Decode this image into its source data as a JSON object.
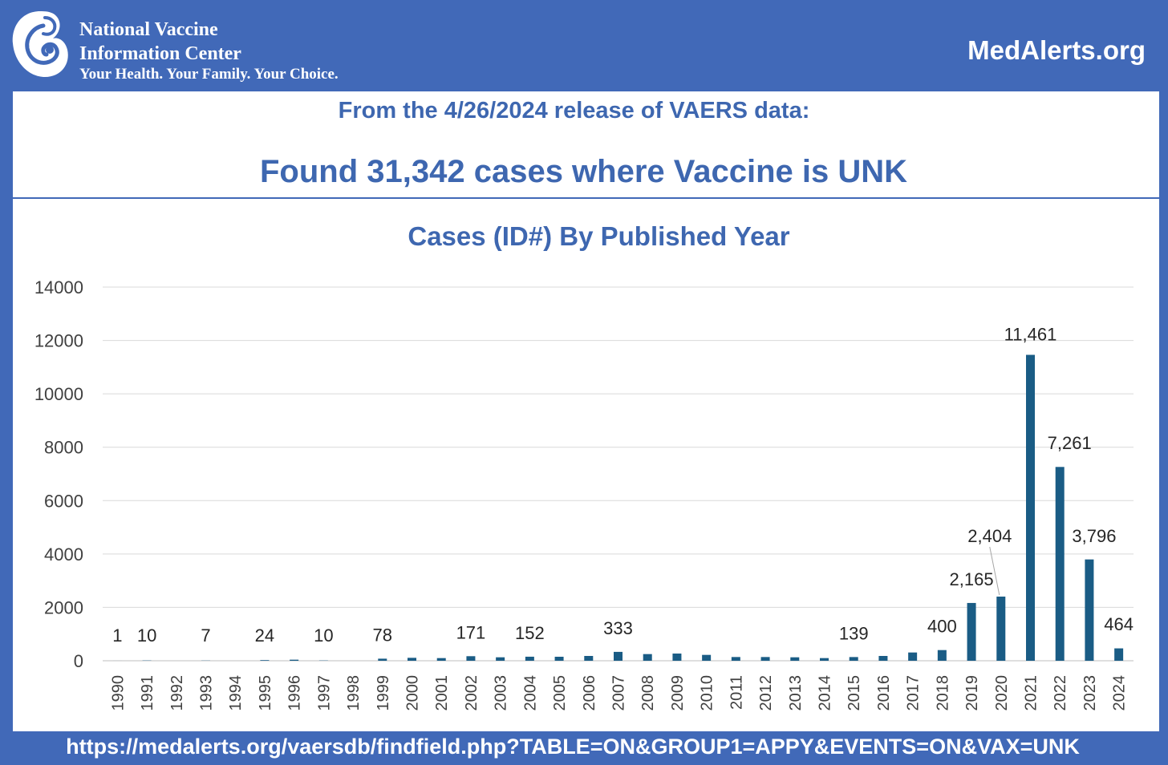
{
  "header": {
    "org_line1": "National Vaccine",
    "org_line2": "Information Center",
    "org_tagline": "Your Health. Your Family. Your Choice.",
    "logo_icon": "mother-child-icon",
    "site": "MedAlerts.org"
  },
  "release_text": "From the 4/26/2024 release of VAERS data:",
  "headline": "Found 31,342 cases where Vaccine is UNK",
  "footer_url": "https://medalerts.org/vaersdb/findfield.php?TABLE=ON&GROUP1=APPY&EVENTS=ON&VAX=UNK",
  "colors": {
    "background": "#4169b8",
    "title_blue": "#3e67b0",
    "bar": "#1a5c85",
    "gridline": "#d9d9d9"
  },
  "chart_data": {
    "type": "bar",
    "title": "Cases (ID#) By Published Year",
    "xlabel": "",
    "ylabel": "",
    "ylim": [
      0,
      14000
    ],
    "yticks": [
      0,
      2000,
      4000,
      6000,
      8000,
      10000,
      12000,
      14000
    ],
    "grid": true,
    "legend": "none",
    "categories": [
      "1990",
      "1991",
      "1992",
      "1993",
      "1994",
      "1995",
      "1996",
      "1997",
      "1998",
      "1999",
      "2000",
      "2001",
      "2002",
      "2003",
      "2004",
      "2005",
      "2006",
      "2007",
      "2008",
      "2009",
      "2010",
      "2011",
      "2012",
      "2013",
      "2014",
      "2015",
      "2016",
      "2017",
      "2018",
      "2019",
      "2020",
      "2021",
      "2022",
      "2023",
      "2024"
    ],
    "values": [
      1,
      10,
      0,
      7,
      0,
      24,
      40,
      10,
      0,
      78,
      110,
      100,
      171,
      130,
      152,
      150,
      180,
      333,
      250,
      270,
      220,
      140,
      140,
      130,
      100,
      139,
      180,
      310,
      400,
      2165,
      2404,
      11461,
      7261,
      3796,
      464
    ],
    "data_labels": [
      {
        "category": "1990",
        "text": "1"
      },
      {
        "category": "1991",
        "text": "10"
      },
      {
        "category": "1993",
        "text": "7"
      },
      {
        "category": "1995",
        "text": "24"
      },
      {
        "category": "1997",
        "text": "10"
      },
      {
        "category": "1999",
        "text": "78"
      },
      {
        "category": "2002",
        "text": "171"
      },
      {
        "category": "2004",
        "text": "152"
      },
      {
        "category": "2007",
        "text": "333"
      },
      {
        "category": "2015",
        "text": "139"
      },
      {
        "category": "2018",
        "text": "400"
      },
      {
        "category": "2019",
        "text": "2,165"
      },
      {
        "category": "2020",
        "text": "2,404"
      },
      {
        "category": "2021",
        "text": "11,461"
      },
      {
        "category": "2022",
        "text": "7,261"
      },
      {
        "category": "2023",
        "text": "3,796"
      },
      {
        "category": "2024",
        "text": "464"
      }
    ]
  }
}
